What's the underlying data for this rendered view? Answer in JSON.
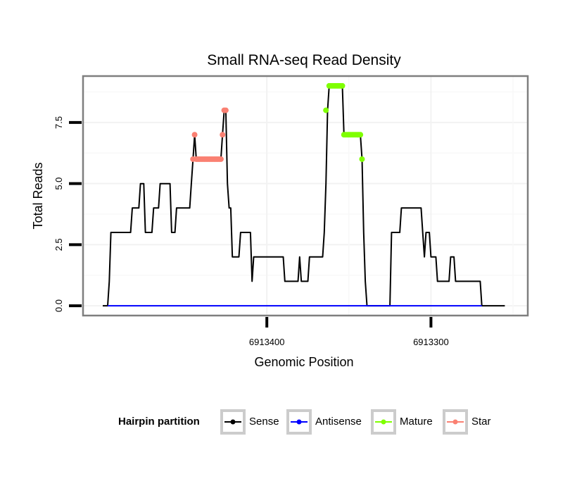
{
  "chart_data": {
    "type": "line",
    "title": "Small RNA-seq Read Density",
    "xlabel": "Genomic Position",
    "ylabel": "Total Reads",
    "x_reversed": true,
    "xlim": [
      6913512,
      6913241
    ],
    "ylim": [
      -0.4,
      9.4
    ],
    "x_ticks": [
      {
        "value": 6913400,
        "label": "6913400"
      },
      {
        "value": 6913300,
        "label": "6913300"
      }
    ],
    "y_ticks": [
      {
        "value": 0,
        "label": "0.0"
      },
      {
        "value": 2.5,
        "label": "2.5"
      },
      {
        "value": 5,
        "label": "5.0"
      },
      {
        "value": 7.5,
        "label": "7.5"
      }
    ],
    "grid": true,
    "legend": {
      "title": "Hairpin partition",
      "position": "bottom",
      "entries": [
        {
          "name": "Sense",
          "color": "#000000"
        },
        {
          "name": "Antisense",
          "color": "#0000ff"
        },
        {
          "name": "Mature",
          "color": "#7fff00"
        },
        {
          "name": "Star",
          "color": "#fa8072"
        }
      ]
    },
    "series": [
      {
        "name": "Sense",
        "color": "#000000",
        "points": [
          [
            6913500,
            0
          ],
          [
            6913497,
            0
          ],
          [
            6913496,
            1
          ],
          [
            6913495,
            3
          ],
          [
            6913483,
            3
          ],
          [
            6913482,
            4
          ],
          [
            6913478,
            4
          ],
          [
            6913477,
            5
          ],
          [
            6913475,
            5
          ],
          [
            6913474,
            3
          ],
          [
            6913470,
            3
          ],
          [
            6913469,
            4
          ],
          [
            6913466,
            4
          ],
          [
            6913465,
            5
          ],
          [
            6913459,
            5
          ],
          [
            6913458,
            3
          ],
          [
            6913456,
            3
          ],
          [
            6913455,
            4
          ],
          [
            6913447,
            4
          ],
          [
            6913446,
            5
          ],
          [
            6913445,
            6
          ],
          [
            6913444,
            7
          ],
          [
            6913443,
            6
          ],
          [
            6913428,
            6
          ],
          [
            6913427,
            7
          ],
          [
            6913426,
            8
          ],
          [
            6913425,
            8
          ],
          [
            6913424,
            5
          ],
          [
            6913423,
            4
          ],
          [
            6913422,
            4
          ],
          [
            6913421,
            2
          ],
          [
            6913417,
            2
          ],
          [
            6913416,
            3
          ],
          [
            6913410,
            3
          ],
          [
            6913409,
            1
          ],
          [
            6913408,
            2
          ],
          [
            6913390,
            2
          ],
          [
            6913389,
            1
          ],
          [
            6913381,
            1
          ],
          [
            6913380,
            2
          ],
          [
            6913379,
            1
          ],
          [
            6913375,
            1
          ],
          [
            6913374,
            2
          ],
          [
            6913366,
            2
          ],
          [
            6913365,
            3
          ],
          [
            6913364,
            5
          ],
          [
            6913363,
            8
          ],
          [
            6913362,
            9
          ],
          [
            6913354,
            9
          ],
          [
            6913353,
            7
          ],
          [
            6913343,
            7
          ],
          [
            6913342,
            6
          ],
          [
            6913341,
            3
          ],
          [
            6913340,
            1
          ],
          [
            6913339,
            0
          ],
          [
            6913325,
            0
          ],
          [
            6913324,
            3
          ],
          [
            6913319,
            3
          ],
          [
            6913318,
            4
          ],
          [
            6913306,
            4
          ],
          [
            6913305,
            3
          ],
          [
            6913304,
            2
          ],
          [
            6913303,
            3
          ],
          [
            6913301,
            3
          ],
          [
            6913300,
            2
          ],
          [
            6913297,
            2
          ],
          [
            6913296,
            1
          ],
          [
            6913289,
            1
          ],
          [
            6913288,
            2
          ],
          [
            6913286,
            2
          ],
          [
            6913285,
            1
          ],
          [
            6913270,
            1
          ],
          [
            6913269,
            0
          ],
          [
            6913255,
            0
          ]
        ]
      },
      {
        "name": "Antisense",
        "color": "#0000ff",
        "points": [
          [
            6913497,
            0
          ],
          [
            6913269,
            0
          ]
        ]
      },
      {
        "name": "Mature",
        "color": "#7fff00",
        "points": [
          [
            6913364,
            8
          ],
          [
            6913362,
            9
          ],
          [
            6913361,
            9
          ],
          [
            6913360,
            9
          ],
          [
            6913359,
            9
          ],
          [
            6913358,
            9
          ],
          [
            6913357,
            9
          ],
          [
            6913356,
            9
          ],
          [
            6913355,
            9
          ],
          [
            6913354,
            9
          ],
          [
            6913353,
            7
          ],
          [
            6913352,
            7
          ],
          [
            6913351,
            7
          ],
          [
            6913350,
            7
          ],
          [
            6913349,
            7
          ],
          [
            6913348,
            7
          ],
          [
            6913347,
            7
          ],
          [
            6913346,
            7
          ],
          [
            6913345,
            7
          ],
          [
            6913344,
            7
          ],
          [
            6913343,
            7
          ],
          [
            6913342,
            6
          ]
        ]
      },
      {
        "name": "Star",
        "color": "#fa8072",
        "points": [
          [
            6913445,
            6
          ],
          [
            6913444,
            7
          ],
          [
            6913443,
            6
          ],
          [
            6913442,
            6
          ],
          [
            6913441,
            6
          ],
          [
            6913440,
            6
          ],
          [
            6913439,
            6
          ],
          [
            6913438,
            6
          ],
          [
            6913437,
            6
          ],
          [
            6913436,
            6
          ],
          [
            6913435,
            6
          ],
          [
            6913434,
            6
          ],
          [
            6913433,
            6
          ],
          [
            6913432,
            6
          ],
          [
            6913431,
            6
          ],
          [
            6913430,
            6
          ],
          [
            6913429,
            6
          ],
          [
            6913428,
            6
          ],
          [
            6913427,
            7
          ],
          [
            6913426,
            8
          ],
          [
            6913425,
            8
          ]
        ]
      }
    ]
  }
}
